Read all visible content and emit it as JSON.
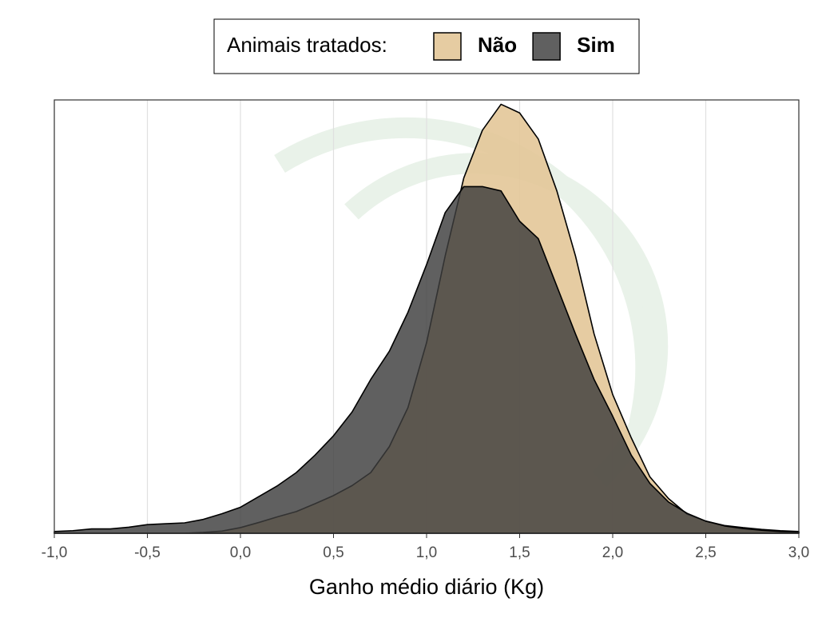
{
  "chart_data": {
    "type": "density",
    "legend_title": "Animais tratados:",
    "xlabel": "Ganho médio diário (Kg)",
    "x": [
      -1.0,
      -0.9,
      -0.8,
      -0.7,
      -0.6,
      -0.5,
      -0.4,
      -0.3,
      -0.2,
      -0.1,
      0.0,
      0.1,
      0.2,
      0.3,
      0.4,
      0.5,
      0.6,
      0.7,
      0.8,
      0.9,
      1.0,
      1.1,
      1.2,
      1.3,
      1.4,
      1.5,
      1.6,
      1.7,
      1.8,
      1.9,
      2.0,
      2.1,
      2.2,
      2.3,
      2.4,
      2.5,
      2.6,
      2.7,
      2.8,
      2.9,
      3.0
    ],
    "series": [
      {
        "name": "Não",
        "color": "#e3c798",
        "values": [
          0,
          0,
          0,
          0,
          0,
          0,
          0,
          0,
          0.002,
          0.005,
          0.013,
          0.025,
          0.038,
          0.05,
          0.068,
          0.087,
          0.11,
          0.14,
          0.2,
          0.29,
          0.44,
          0.64,
          0.82,
          0.93,
          0.99,
          0.97,
          0.91,
          0.79,
          0.64,
          0.46,
          0.32,
          0.22,
          0.13,
          0.08,
          0.044,
          0.028,
          0.018,
          0.013,
          0.009,
          0.006,
          0.004
        ]
      },
      {
        "name": "Sim",
        "color": "#3d3d3d",
        "values": [
          0.004,
          0.006,
          0.01,
          0.01,
          0.014,
          0.02,
          0.022,
          0.024,
          0.032,
          0.045,
          0.06,
          0.085,
          0.11,
          0.14,
          0.18,
          0.225,
          0.28,
          0.355,
          0.42,
          0.51,
          0.62,
          0.74,
          0.8,
          0.8,
          0.79,
          0.72,
          0.68,
          0.57,
          0.46,
          0.355,
          0.27,
          0.18,
          0.115,
          0.072,
          0.046,
          0.028,
          0.017,
          0.011,
          0.007,
          0.004,
          0.003
        ]
      }
    ],
    "xlim": [
      -1.0,
      3.0
    ],
    "ylim": [
      0,
      1.0
    ],
    "xticks": [
      {
        "value": -1.0,
        "label": "-1,0"
      },
      {
        "value": -0.5,
        "label": "-0,5"
      },
      {
        "value": 0,
        "label": "0,0"
      },
      {
        "value": 0.5,
        "label": "0,5"
      },
      {
        "value": 1.0,
        "label": "1,0"
      },
      {
        "value": 1.5,
        "label": "1,5"
      },
      {
        "value": 2.0,
        "label": "2,0"
      },
      {
        "value": 2.5,
        "label": "2,5"
      },
      {
        "value": 3.0,
        "label": "3,0"
      }
    ],
    "grid": true,
    "legend_position": "top"
  }
}
